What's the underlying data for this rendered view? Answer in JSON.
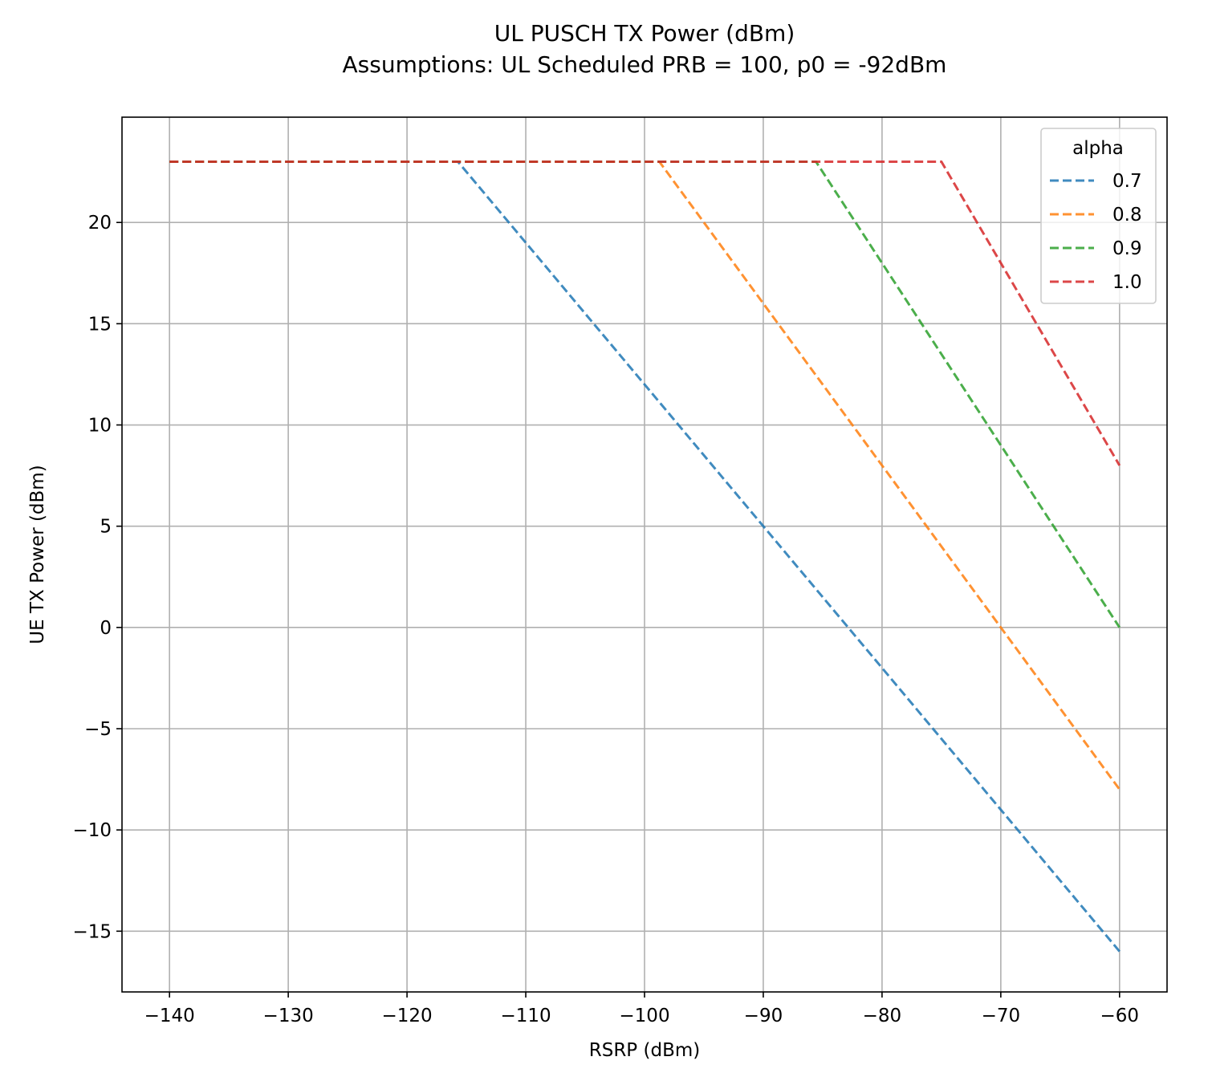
{
  "chart_data": {
    "type": "line",
    "title": "UL PUSCH TX Power (dBm)",
    "subtitle": "Assumptions: UL Scheduled PRB = 100, p0 = -92dBm",
    "xlabel": "RSRP (dBm)",
    "ylabel": "UE TX Power (dBm)",
    "xlim": [
      -144,
      -56
    ],
    "ylim": [
      -18,
      25.2
    ],
    "xticks": [
      -140,
      -130,
      -120,
      -110,
      -100,
      -90,
      -80,
      -70,
      -60
    ],
    "yticks": [
      -15,
      -10,
      -5,
      0,
      5,
      10,
      15,
      20
    ],
    "xtick_labels": [
      "−140",
      "−130",
      "−120",
      "−110",
      "−100",
      "−90",
      "−80",
      "−70",
      "−60"
    ],
    "ytick_labels": [
      "−15",
      "−10",
      "−5",
      "0",
      "5",
      "10",
      "15",
      "20"
    ],
    "grid": true,
    "legend": {
      "title": "alpha",
      "placement": "top-right"
    },
    "series": [
      {
        "name": "0.7",
        "color": "#1f77b4",
        "x": [
          -140,
          -115.71,
          -60
        ],
        "y": [
          23,
          23,
          -16
        ]
      },
      {
        "name": "0.8",
        "color": "#ff7f0e",
        "x": [
          -140,
          -98.75,
          -60
        ],
        "y": [
          23,
          23,
          -8
        ]
      },
      {
        "name": "0.9",
        "color": "#2ca02c",
        "x": [
          -140,
          -85.56,
          -60
        ],
        "y": [
          23,
          23,
          0
        ]
      },
      {
        "name": "1.0",
        "color": "#d62728",
        "x": [
          -140,
          -75,
          -60
        ],
        "y": [
          23,
          23,
          8
        ]
      }
    ]
  }
}
